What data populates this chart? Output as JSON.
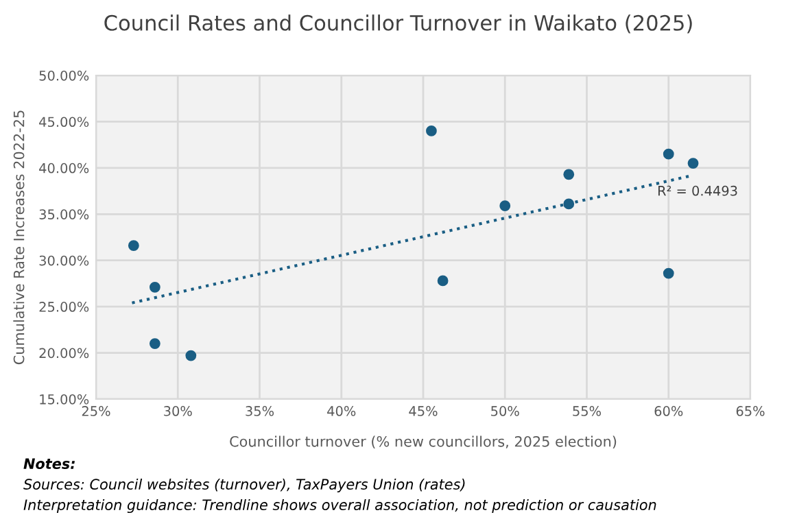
{
  "chart_data": {
    "type": "scatter",
    "title": "Council Rates and Councillor Turnover in Waikato (2025)",
    "xlabel": "Councillor turnover (% new councillors, 2025 election)",
    "ylabel": "Cumulative Rate Increases 2022-25",
    "series": [
      {
        "color": "#1a5e84",
        "marker": "circle",
        "x": [
          45.5,
          60.0,
          61.5,
          53.9,
          50.0,
          53.9,
          27.3,
          28.6,
          46.2,
          60.0,
          28.6,
          30.8
        ],
        "values": [
          44.0,
          41.5,
          40.5,
          39.3,
          35.9,
          36.1,
          31.6,
          27.1,
          27.8,
          28.6,
          21.0,
          19.7
        ]
      },
      {
        "type": "line",
        "color": "#1a5e84",
        "marker": "none",
        "line_style": "dotted",
        "x": [
          27.2,
          61.5
        ],
        "values": [
          25.4,
          39.2
        ]
      }
    ],
    "xlim": [
      25,
      65
    ],
    "xticks": [
      {
        "value": 25,
        "label": "25%"
      },
      {
        "value": 30,
        "label": "30%"
      },
      {
        "value": 35,
        "label": "35%"
      },
      {
        "value": 40,
        "label": "40%"
      },
      {
        "value": 45,
        "label": "45%"
      },
      {
        "value": 50,
        "label": "50%"
      },
      {
        "value": 55,
        "label": "55%"
      },
      {
        "value": 60,
        "label": "60%"
      },
      {
        "value": 65,
        "label": "65%"
      }
    ],
    "ylim": [
      15,
      50
    ],
    "yticks": [
      {
        "value": 15,
        "label": "15.00%"
      },
      {
        "value": 20,
        "label": "20.00%"
      },
      {
        "value": 25,
        "label": "25.00%"
      },
      {
        "value": 30,
        "label": "30.00%"
      },
      {
        "value": 35,
        "label": "35.00%"
      },
      {
        "value": 40,
        "label": "40.00%"
      },
      {
        "value": 45,
        "label": "45.00%"
      },
      {
        "value": 50,
        "label": "50.00%"
      }
    ],
    "grid": true,
    "annotations": [
      {
        "text": "R² = 0.4493",
        "x": 59.3,
        "y": 37.4
      },
      "Notes:",
      "Sources: Council websites (turnover), TaxPayers Union (rates)",
      "Interpretation guidance: Trendline shows overall association, not prediction or causation"
    ]
  }
}
